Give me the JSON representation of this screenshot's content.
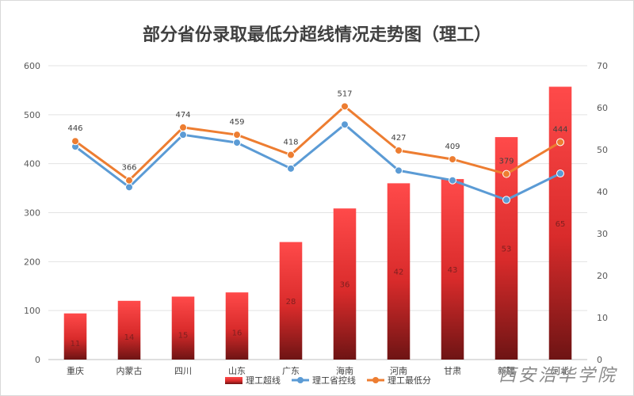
{
  "chart_data": {
    "type": "bar",
    "title": "部分省份录取最低分超线情况走势图（理工）",
    "categories": [
      "重庆",
      "内蒙古",
      "四川",
      "山东",
      "广东",
      "海南",
      "河南",
      "甘肃",
      "新疆",
      "河北"
    ],
    "left_axis": {
      "min": 0,
      "max": 600,
      "ticks": [
        "0",
        "100",
        "200",
        "300",
        "400",
        "500",
        "600"
      ]
    },
    "right_axis": {
      "min": 0,
      "max": 70,
      "ticks": [
        "0",
        "10",
        "20",
        "30",
        "40",
        "50",
        "60",
        "70"
      ]
    },
    "series": [
      {
        "name": "理工超线",
        "kind": "bar",
        "axis": "right",
        "values": [
          11,
          14,
          15,
          16,
          28,
          36,
          42,
          43,
          53,
          65
        ],
        "labels": [
          "11",
          "14",
          "15",
          "16",
          "28",
          "36",
          "42",
          "43",
          "53",
          "65"
        ],
        "color": "#e83a3a"
      },
      {
        "name": "理工省控线",
        "kind": "line",
        "axis": "left",
        "values": [
          435,
          352,
          459,
          443,
          390,
          480,
          386,
          366,
          326,
          380
        ],
        "color": "#5b9bd5"
      },
      {
        "name": "理工最低分",
        "kind": "line",
        "axis": "left",
        "values": [
          446,
          366,
          474,
          459,
          418,
          517,
          427,
          409,
          379,
          444
        ],
        "labels": [
          "446",
          "366",
          "474",
          "459",
          "418",
          "517",
          "427",
          "409",
          "379",
          "444"
        ],
        "color": "#ed7d31"
      }
    ],
    "legend_position": "bottom"
  },
  "watermark": "西安浩华学院"
}
